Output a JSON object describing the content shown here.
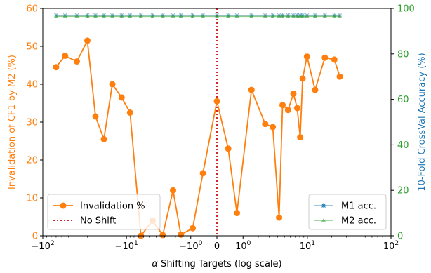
{
  "chart_data": {
    "type": "line",
    "xlabel": "α Shifting Targets (log scale)",
    "ylabel_left": "Invalidation of CF1 by M2 (%)",
    "ylabel_right": "10-Fold CrossVal Accuracy (%)",
    "x_scale": "symlog",
    "x_ticks": [
      "−10^2",
      "−10^1",
      "−10^0",
      "0",
      "10^0",
      "10^1",
      "10^2"
    ],
    "ylim_left": [
      0,
      60
    ],
    "yticks_left": [
      0,
      10,
      20,
      30,
      40,
      50,
      60
    ],
    "ylim_right": [
      0,
      100
    ],
    "yticks_right": [
      0,
      20,
      40,
      60,
      80,
      100
    ],
    "colors": {
      "left_axis": "#ff7f0e",
      "right_axis_label": "#1f77b4",
      "right_ticks": "#2ca02c",
      "m1": "#1f77b4",
      "m2": "#2ca02c",
      "no_shift": "#d62728"
    },
    "series": [
      {
        "name": "Invalidation %",
        "axis": "left",
        "marker": "circle",
        "x": [
          -70,
          -55,
          -40,
          -30,
          -24,
          -19,
          -15,
          -11.5,
          -9,
          -6.5,
          -4.5,
          -3.2,
          -2.2,
          -1.6,
          -0.9,
          -0.45,
          0,
          0.35,
          0.7,
          1.5,
          2.6,
          3.4,
          4.2,
          4.7,
          5.6,
          6.6,
          7.4,
          8.1,
          8.7,
          9.9,
          12.5,
          16.5,
          21.5,
          25
        ],
        "y": [
          44.5,
          47.5,
          46,
          51.5,
          31.5,
          25.5,
          40,
          36.5,
          32.5,
          0,
          4,
          0.2,
          12,
          0.3,
          2,
          16.5,
          35.5,
          23,
          6,
          38.5,
          29.5,
          28.7,
          4.8,
          34.5,
          33.2,
          37.5,
          33.7,
          26,
          41.5,
          47.3,
          38.5,
          47,
          46.5,
          42
        ]
      },
      {
        "name": "M1 acc.",
        "axis": "right",
        "marker": "cross",
        "x": [
          -70,
          -55,
          -40,
          -30,
          -24,
          -19,
          -15,
          -11.5,
          -9,
          -6.5,
          -4.5,
          -3.2,
          -2.2,
          -1.6,
          -0.9,
          -0.45,
          0,
          0.35,
          0.7,
          1.5,
          2.6,
          3.4,
          4.2,
          4.7,
          5.6,
          6.6,
          7.4,
          8.1,
          8.7,
          9.9,
          12.5,
          16.5,
          21.5,
          25
        ],
        "y": [
          97,
          97,
          97,
          97,
          97,
          97,
          97,
          97,
          97,
          97,
          97,
          97,
          97,
          97,
          97,
          97,
          97,
          97,
          97,
          97,
          97,
          97,
          97,
          97,
          97,
          97,
          97,
          97,
          97,
          97,
          97,
          97,
          97,
          97
        ]
      },
      {
        "name": "M2 acc.",
        "axis": "right",
        "marker": "triangle",
        "x": [
          -70,
          -55,
          -40,
          -30,
          -24,
          -19,
          -15,
          -11.5,
          -9,
          -6.5,
          -4.5,
          -3.2,
          -2.2,
          -1.6,
          -0.9,
          -0.45,
          0,
          0.35,
          0.7,
          1.5,
          2.6,
          3.4,
          4.2,
          4.7,
          5.6,
          6.6,
          7.4,
          8.1,
          8.7,
          9.9,
          12.5,
          16.5,
          21.5,
          25
        ],
        "y": [
          96.5,
          96.5,
          96.5,
          96.5,
          96.5,
          96.5,
          96.5,
          96.5,
          96.5,
          96.5,
          96.5,
          96.5,
          96.5,
          96.5,
          96.5,
          96.5,
          96.5,
          96.5,
          96.5,
          96.5,
          96.5,
          96.5,
          96.5,
          96.5,
          96.5,
          96.5,
          96.5,
          96.5,
          96.5,
          96.5,
          96.5,
          96.5,
          96.5,
          96.5
        ]
      }
    ],
    "reference_lines": [
      {
        "name": "No Shift",
        "x": 0,
        "style": "dotted"
      }
    ],
    "legend_left": {
      "placement": "bottom-left",
      "entries": [
        "Invalidation %",
        "No Shift"
      ]
    },
    "legend_right": {
      "placement": "bottom-right",
      "entries": [
        "M1 acc.",
        "M2 acc."
      ]
    },
    "grid": false
  }
}
